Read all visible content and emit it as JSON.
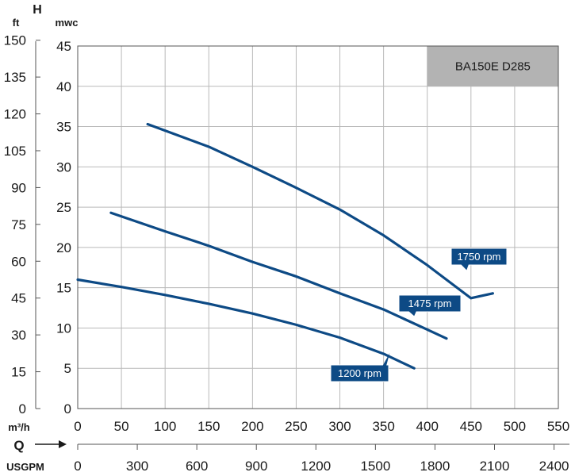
{
  "chart_data": {
    "type": "line",
    "title": "BA150E D285",
    "y_axis_label": "H",
    "ylabel_left": "ft",
    "ylabel_right": "mwc",
    "xlabel_top": "m³/h",
    "xlabel_bottom": "USGPM",
    "q_label": "Q",
    "xlim": [
      0,
      550
    ],
    "ylim": [
      0,
      45
    ],
    "ft_ticks": [
      "0",
      "15",
      "30",
      "45",
      "60",
      "75",
      "90",
      "105",
      "120",
      "135",
      "150"
    ],
    "mwc_ticks": [
      "0",
      "5",
      "10",
      "15",
      "20",
      "25",
      "30",
      "35",
      "40",
      "45"
    ],
    "m3h_ticks": [
      "0",
      "50",
      "100",
      "150",
      "200",
      "250",
      "300",
      "350",
      "400",
      "450",
      "500",
      "550"
    ],
    "usgpm_ticks": [
      "0",
      "300",
      "600",
      "900",
      "1200",
      "1500",
      "1800",
      "2100",
      "2400"
    ],
    "grid": true,
    "line_color": "#0d4a85",
    "series": [
      {
        "name": "1750 rpm",
        "x": [
          80,
          150,
          200,
          250,
          300,
          350,
          400,
          450,
          475
        ],
        "y": [
          35.3,
          32.5,
          30.0,
          27.4,
          24.7,
          21.5,
          17.8,
          13.7,
          14.3
        ]
      },
      {
        "name": "1475 rpm",
        "x": [
          38,
          100,
          150,
          200,
          250,
          300,
          350,
          400,
          422
        ],
        "y": [
          24.3,
          22.0,
          20.2,
          18.2,
          16.4,
          14.3,
          12.3,
          9.8,
          8.7
        ]
      },
      {
        "name": "1200 rpm",
        "x": [
          0,
          50,
          100,
          150,
          200,
          250,
          300,
          350,
          385
        ],
        "y": [
          16.0,
          15.1,
          14.1,
          13.0,
          11.8,
          10.4,
          8.8,
          6.8,
          5.0
        ]
      }
    ]
  }
}
